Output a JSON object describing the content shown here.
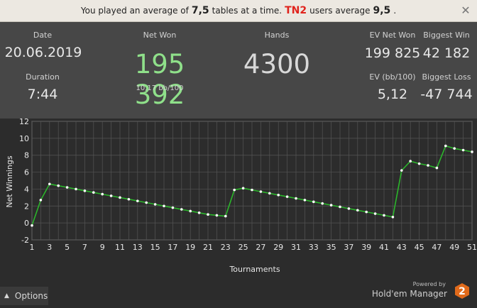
{
  "banner": {
    "text1": "You played an average of",
    "avg": "7,5",
    "text2": "tables at a time.",
    "tag": "TN2",
    "text3": "users average",
    "users_avg": "9,5",
    "text4": ".",
    "close_icon": "close-icon"
  },
  "stats": {
    "date_label": "Date",
    "date_value": "20.06.2019",
    "duration_label": "Duration",
    "duration_value": "7:44",
    "net_won_label": "Net Won",
    "net_won_value": "195 392",
    "bb_value": "10,17 bb/100",
    "hands_label": "Hands",
    "hands_value": "4300",
    "ev_net_won_label": "EV Net Won",
    "ev_net_won_value": "199 825",
    "biggest_win_label": "Biggest Win",
    "biggest_win_value": "42 182",
    "ev_bb_label": "EV (bb/100)",
    "ev_bb_value": "5,12",
    "biggest_loss_label": "Biggest Loss",
    "biggest_loss_value": "-47 744"
  },
  "chart_data": {
    "type": "line",
    "xlabel": "Tournaments",
    "ylabel": "Net Winnings",
    "xlim": [
      1,
      51
    ],
    "ylim": [
      -2,
      12
    ],
    "x_ticks": [
      1,
      3,
      5,
      7,
      9,
      11,
      13,
      15,
      17,
      19,
      21,
      23,
      25,
      27,
      29,
      31,
      33,
      35,
      37,
      39,
      41,
      43,
      45,
      47,
      49,
      51
    ],
    "y_ticks": [
      -2,
      0,
      2,
      4,
      6,
      8,
      10,
      12
    ],
    "grid": true,
    "line_color": "#2bb52b",
    "series": [
      {
        "x": [
          1,
          2,
          3,
          4,
          5,
          6,
          7,
          8,
          9,
          10,
          11,
          12,
          13,
          14,
          15,
          16,
          17,
          18,
          19,
          20,
          21,
          22,
          23,
          24,
          25,
          26,
          27,
          28,
          29,
          30,
          31,
          32,
          33,
          34,
          35,
          36,
          37,
          38,
          39,
          40,
          41,
          42,
          43,
          44,
          45,
          46,
          47,
          48,
          49,
          50,
          51
        ],
        "values": [
          -0.3,
          2.7,
          4.6,
          4.4,
          4.2,
          4.0,
          3.8,
          3.6,
          3.4,
          3.2,
          3.0,
          2.8,
          2.6,
          2.4,
          2.2,
          2.0,
          1.8,
          1.6,
          1.4,
          1.2,
          1.0,
          0.9,
          0.8,
          3.9,
          4.1,
          3.9,
          3.7,
          3.5,
          3.3,
          3.1,
          2.9,
          2.7,
          2.5,
          2.3,
          2.1,
          1.9,
          1.7,
          1.5,
          1.3,
          1.1,
          0.9,
          0.7,
          6.2,
          7.3,
          7.0,
          6.8,
          6.5,
          9.1,
          8.8,
          8.6,
          8.4
        ]
      }
    ]
  },
  "footer": {
    "options_label": "Options",
    "options_icon": "chevron-up-icon",
    "powered_by": "Powered by",
    "brand_name": "Hold'em Manager",
    "logo_text": "2",
    "logo_color": "#e06a1b"
  }
}
